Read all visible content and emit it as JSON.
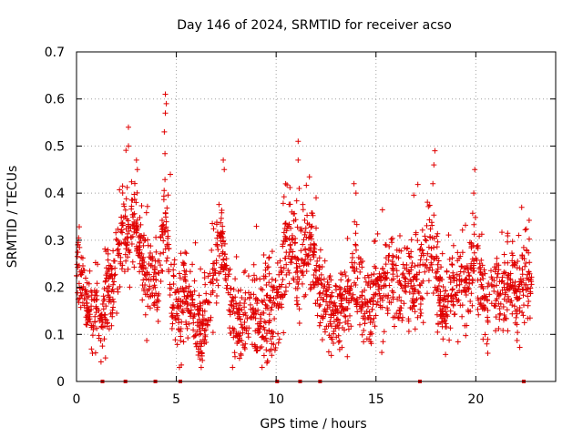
{
  "chart_data": {
    "type": "scatter",
    "title": "Day 146 of 2024, SRMTID for receiver acso",
    "xlabel": "GPS time / hours",
    "ylabel": "SRMTID / TECUs",
    "xlim": [
      0,
      24
    ],
    "ylim": [
      0,
      0.7
    ],
    "x_ticks": [
      0,
      5,
      10,
      15,
      20
    ],
    "x_tick_labels": [
      "0",
      "5",
      "10",
      "15",
      "20"
    ],
    "y_ticks": [
      0,
      0.1,
      0.2,
      0.3,
      0.4,
      0.5,
      0.6,
      0.7
    ],
    "y_tick_labels": [
      "0",
      "0.1",
      "0.2",
      "0.3",
      "0.4",
      "0.5",
      "0.6",
      "0.7"
    ],
    "grid": true,
    "marker": "plus",
    "color": "#e00000",
    "zero_markers_x": [
      1.3,
      2.45,
      3.95,
      5.2,
      10.05,
      11.2,
      12.2,
      17.2,
      22.4
    ],
    "series": [
      {
        "name": "SRMTID",
        "profile_x": [
          0,
          0.2,
          0.5,
          0.8,
          1.0,
          1.3,
          1.6,
          1.8,
          2.0,
          2.3,
          2.6,
          2.9,
          3.2,
          3.5,
          3.8,
          4.1,
          4.4,
          4.6,
          4.8,
          5.1,
          5.4,
          5.8,
          6.2,
          6.6,
          7.0,
          7.3,
          7.6,
          8.0,
          8.4,
          8.8,
          9.2,
          9.6,
          10.0,
          10.2,
          10.5,
          10.8,
          11.1,
          11.4,
          11.8,
          12.1,
          12.4,
          12.7,
          13.0,
          13.3,
          13.6,
          13.9,
          14.2,
          14.6,
          15.0,
          15.4,
          15.8,
          16.2,
          16.6,
          17.0,
          17.4,
          17.8,
          18.1,
          18.4,
          18.8,
          19.2,
          19.6,
          20.0,
          20.3,
          20.6,
          21.0,
          21.4,
          21.8,
          22.2,
          22.5,
          22.8
        ],
        "profile_y": [
          0.28,
          0.22,
          0.18,
          0.12,
          0.16,
          0.12,
          0.2,
          0.17,
          0.26,
          0.33,
          0.3,
          0.36,
          0.27,
          0.2,
          0.22,
          0.2,
          0.35,
          0.28,
          0.16,
          0.12,
          0.2,
          0.15,
          0.12,
          0.14,
          0.26,
          0.32,
          0.16,
          0.14,
          0.13,
          0.15,
          0.12,
          0.14,
          0.15,
          0.2,
          0.28,
          0.3,
          0.22,
          0.28,
          0.3,
          0.2,
          0.17,
          0.15,
          0.14,
          0.16,
          0.18,
          0.22,
          0.2,
          0.16,
          0.18,
          0.2,
          0.22,
          0.2,
          0.22,
          0.2,
          0.24,
          0.3,
          0.2,
          0.15,
          0.2,
          0.22,
          0.2,
          0.28,
          0.2,
          0.15,
          0.2,
          0.19,
          0.2,
          0.18,
          0.24,
          0.21
        ],
        "point_count": 2200,
        "peaks": [
          {
            "x": 4.45,
            "y": 0.61
          },
          {
            "x": 4.5,
            "y": 0.59
          },
          {
            "x": 4.45,
            "y": 0.57
          },
          {
            "x": 4.4,
            "y": 0.53
          },
          {
            "x": 2.6,
            "y": 0.54
          },
          {
            "x": 2.6,
            "y": 0.5
          },
          {
            "x": 3.0,
            "y": 0.47
          },
          {
            "x": 3.05,
            "y": 0.45
          },
          {
            "x": 4.7,
            "y": 0.44
          },
          {
            "x": 7.35,
            "y": 0.47
          },
          {
            "x": 7.4,
            "y": 0.45
          },
          {
            "x": 11.1,
            "y": 0.51
          },
          {
            "x": 11.1,
            "y": 0.47
          },
          {
            "x": 11.15,
            "y": 0.41
          },
          {
            "x": 12.0,
            "y": 0.39
          },
          {
            "x": 13.9,
            "y": 0.42
          },
          {
            "x": 14.0,
            "y": 0.4
          },
          {
            "x": 17.95,
            "y": 0.49
          },
          {
            "x": 17.9,
            "y": 0.46
          },
          {
            "x": 17.85,
            "y": 0.42
          },
          {
            "x": 19.95,
            "y": 0.45
          },
          {
            "x": 19.9,
            "y": 0.4
          },
          {
            "x": 22.3,
            "y": 0.37
          },
          {
            "x": 5.25,
            "y": 0.035
          },
          {
            "x": 20.6,
            "y": 0.06
          },
          {
            "x": 1.45,
            "y": 0.05
          },
          {
            "x": 0.8,
            "y": 0.06
          }
        ]
      }
    ]
  }
}
